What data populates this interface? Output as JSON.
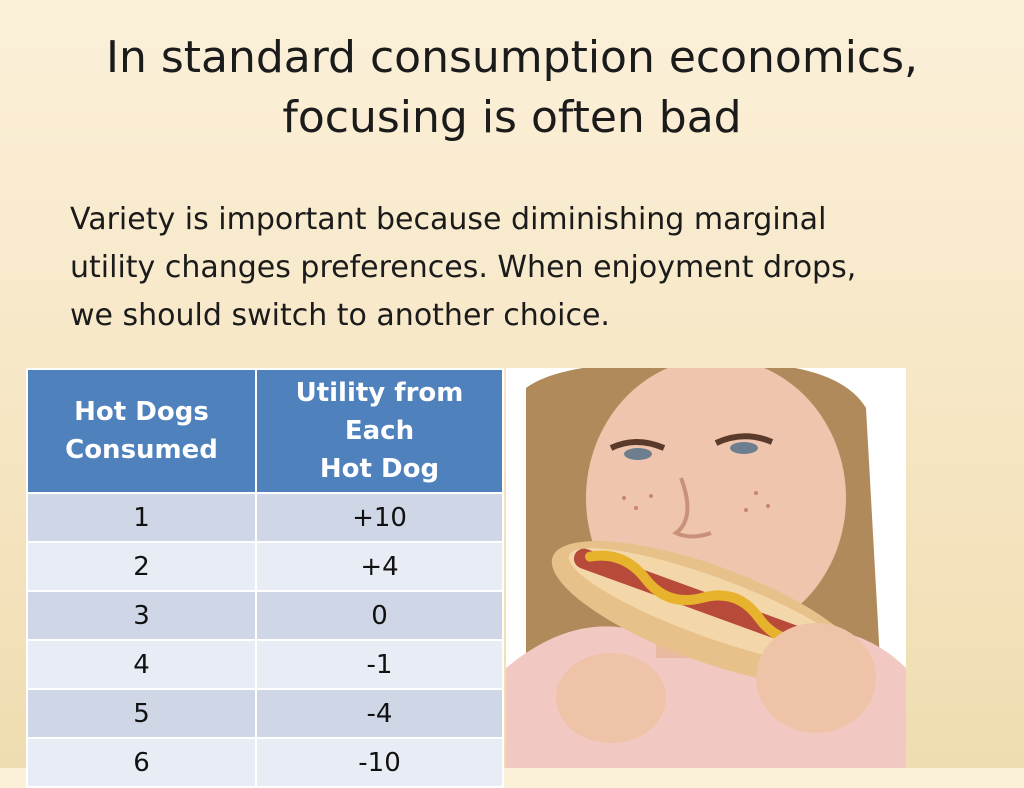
{
  "slide": {
    "title_line1": "In standard consumption economics,",
    "title_line2": "focusing is often bad",
    "body_line1": "Variety is important because diminishing marginal",
    "body_line2": "utility changes preferences.  When enjoyment drops,",
    "body_line3": "we should switch to another choice."
  },
  "table": {
    "headers": [
      {
        "line1": "Hot Dogs",
        "line2": "Consumed"
      },
      {
        "line1": "Utility from Each",
        "line2": "Hot Dog"
      }
    ],
    "rows": [
      {
        "consumed": "1",
        "utility": "+10"
      },
      {
        "consumed": "2",
        "utility": "+4"
      },
      {
        "consumed": "3",
        "utility": "0"
      },
      {
        "consumed": "4",
        "utility": "-1"
      },
      {
        "consumed": "5",
        "utility": "-4"
      },
      {
        "consumed": "6",
        "utility": "-10"
      }
    ],
    "header_color": "#4f81bd",
    "row_colors": [
      "#cfd7e7",
      "#e8ecf4"
    ]
  },
  "image": {
    "subject": "girl-eating-hot-dog-photo"
  }
}
